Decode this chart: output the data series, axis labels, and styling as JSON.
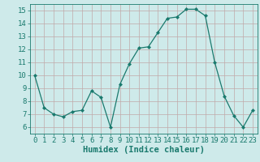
{
  "x": [
    0,
    1,
    2,
    3,
    4,
    5,
    6,
    7,
    8,
    9,
    10,
    11,
    12,
    13,
    14,
    15,
    16,
    17,
    18,
    19,
    20,
    21,
    22,
    23
  ],
  "y": [
    10,
    7.5,
    7,
    6.8,
    7.2,
    7.3,
    8.8,
    8.3,
    6.0,
    9.3,
    10.9,
    12.1,
    12.2,
    13.3,
    14.4,
    14.5,
    15.1,
    15.1,
    14.6,
    11.0,
    8.4,
    6.9,
    6.0,
    7.3
  ],
  "line_color": "#1a7a6e",
  "marker": "D",
  "marker_size": 2,
  "bg_color": "#ceeaea",
  "grid_color": "#c0a8a8",
  "xlabel": "Humidex (Indice chaleur)",
  "xlim": [
    -0.5,
    23.5
  ],
  "ylim": [
    5.5,
    15.5
  ],
  "yticks": [
    6,
    7,
    8,
    9,
    10,
    11,
    12,
    13,
    14,
    15
  ],
  "xticks": [
    0,
    1,
    2,
    3,
    4,
    5,
    6,
    7,
    8,
    9,
    10,
    11,
    12,
    13,
    14,
    15,
    16,
    17,
    18,
    19,
    20,
    21,
    22,
    23
  ],
  "tick_label_fontsize": 6.5,
  "xlabel_fontsize": 7.5
}
